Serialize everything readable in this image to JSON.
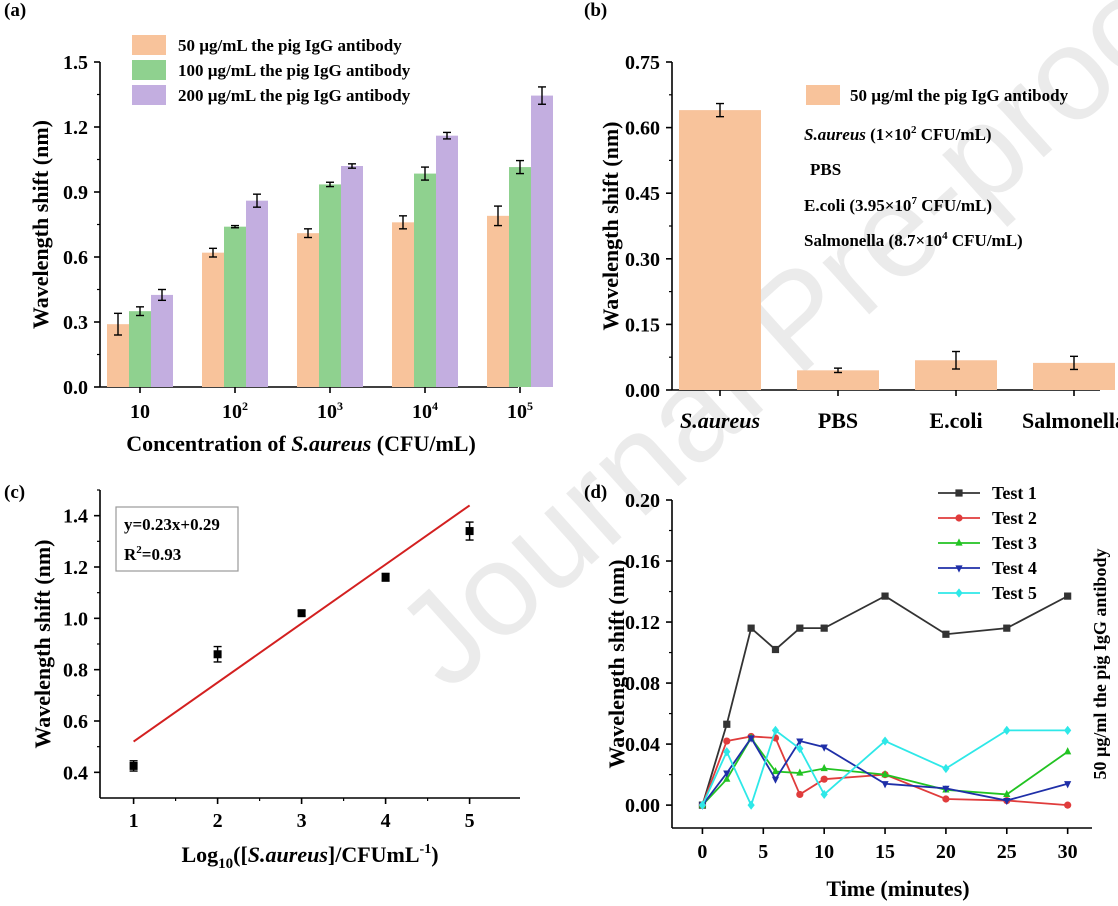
{
  "watermark": "Journal Pre-proof",
  "chart_data": [
    {
      "panel": "(a)",
      "type": "bar",
      "categories": [
        "10",
        "10^2",
        "10^3",
        "10^4",
        "10^5"
      ],
      "category_labels": [
        {
          "base": "10",
          "exp": ""
        },
        {
          "base": "10",
          "exp": "2"
        },
        {
          "base": "10",
          "exp": "3"
        },
        {
          "base": "10",
          "exp": "4"
        },
        {
          "base": "10",
          "exp": "5"
        }
      ],
      "series": [
        {
          "name": "50 µg/mL the pig IgG antibody",
          "color": "#f8c39b",
          "values": [
            0.29,
            0.62,
            0.71,
            0.76,
            0.79
          ],
          "errors": [
            0.05,
            0.02,
            0.02,
            0.03,
            0.045
          ]
        },
        {
          "name": "100 µg/mL the pig IgG antibody",
          "color": "#8fd18f",
          "values": [
            0.35,
            0.74,
            0.935,
            0.985,
            1.015
          ],
          "errors": [
            0.02,
            0.005,
            0.01,
            0.03,
            0.03
          ]
        },
        {
          "name": "200 µg/mL the pig IgG antibody",
          "color": "#c3aee0",
          "values": [
            0.425,
            0.86,
            1.02,
            1.16,
            1.345
          ],
          "errors": [
            0.025,
            0.03,
            0.01,
            0.015,
            0.04
          ]
        }
      ],
      "xlabel": "Concentration of S.aureus (CFU/mL)",
      "xlabel_parts": [
        "Concentration of ",
        "S.aureus",
        " (CFU/mL)"
      ],
      "ylabel": "Wavelength shift (nm)",
      "ylim": [
        0,
        1.5
      ],
      "yticks": [
        "0.0",
        "0.3",
        "0.6",
        "0.9",
        "1.2",
        "1.5"
      ],
      "legend": "top-left"
    },
    {
      "panel": "(b)",
      "type": "bar",
      "categories": [
        "S.aureus",
        "PBS",
        "E.coli",
        "Salmonella"
      ],
      "series": [
        {
          "name": "50 µg/ml the pig IgG antibody",
          "color": "#f8c39b",
          "values": [
            0.64,
            0.045,
            0.068,
            0.062
          ],
          "errors": [
            0.015,
            0.005,
            0.02,
            0.015
          ]
        }
      ],
      "ylabel": "Wavelength shift (nm)",
      "ylim": [
        0,
        0.75
      ],
      "yticks": [
        "0.00",
        "0.15",
        "0.30",
        "0.45",
        "0.60",
        "0.75"
      ],
      "annotations": [
        {
          "parts": [
            "S.aureus",
            " (1×10",
            "2",
            " CFU/mL)"
          ]
        },
        {
          "parts": [
            "",
            "PBS",
            "",
            ""
          ]
        },
        {
          "parts": [
            "",
            "E.coli (3.95×10",
            "7",
            " CFU/mL)"
          ]
        },
        {
          "parts": [
            "",
            "Salmonella (8.7×10",
            "4",
            " CFU/mL)"
          ]
        }
      ],
      "legend": "top-right"
    },
    {
      "panel": "(c)",
      "type": "scatter",
      "x": [
        1,
        2,
        3,
        4,
        5
      ],
      "y": [
        0.425,
        0.86,
        1.02,
        1.16,
        1.34
      ],
      "errors": [
        0.02,
        0.03,
        0.01,
        0.015,
        0.035
      ],
      "fit": {
        "slope": 0.23,
        "intercept": 0.29,
        "color": "#d32020"
      },
      "fit_label": {
        "equation": "y=0.23x+0.29",
        "r2_prefix": "R",
        "r2_exp": "2",
        "r2_value": "=0.93"
      },
      "xlabel_parts": [
        "Log",
        "10",
        "([",
        "S.aureus",
        "]/CFUmL",
        "-1",
        ")"
      ],
      "ylabel": "Wavelength shift (nm)",
      "xlim": [
        0.6,
        5.6
      ],
      "ylim": [
        0.3,
        1.5
      ],
      "xticks": [
        "1",
        "2",
        "3",
        "4",
        "5"
      ],
      "yticks": [
        "0.4",
        "0.6",
        "0.8",
        "1.0",
        "1.2",
        "1.4"
      ]
    },
    {
      "panel": "(d)",
      "type": "line",
      "x": [
        0,
        2,
        4,
        6,
        8,
        10,
        15,
        20,
        25,
        30
      ],
      "series": [
        {
          "name": "Test 1",
          "color": "#333333",
          "marker": "square",
          "values": [
            0.0,
            0.053,
            0.116,
            0.102,
            0.116,
            0.116,
            0.137,
            0.112,
            0.116,
            0.137
          ]
        },
        {
          "name": "Test 2",
          "color": "#e03c3c",
          "marker": "circle",
          "values": [
            0.0,
            0.042,
            0.045,
            0.044,
            0.007,
            0.017,
            0.02,
            0.004,
            0.003,
            0.0
          ]
        },
        {
          "name": "Test 3",
          "color": "#22c322",
          "marker": "triangle-up",
          "values": [
            0.0,
            0.017,
            0.044,
            0.022,
            0.021,
            0.024,
            0.02,
            0.01,
            0.007,
            0.035
          ]
        },
        {
          "name": "Test 4",
          "color": "#1f2fa8",
          "marker": "triangle-down",
          "values": [
            0.0,
            0.021,
            0.044,
            0.017,
            0.042,
            0.038,
            0.014,
            0.011,
            0.003,
            0.014
          ]
        },
        {
          "name": "Test 5",
          "color": "#2ee8e8",
          "marker": "diamond",
          "values": [
            0.0,
            0.035,
            0.0,
            0.049,
            0.037,
            0.007,
            0.042,
            0.024,
            0.049,
            0.049
          ]
        }
      ],
      "xlabel": "Time (minutes)",
      "ylabel": "Wavelength shift (nm)",
      "right_label": "50 µg/ml the pig IgG antibody",
      "xlim": [
        -2.5,
        32
      ],
      "ylim": [
        -0.015,
        0.2
      ],
      "xticks": [
        "0",
        "5",
        "10",
        "15",
        "20",
        "25",
        "30"
      ],
      "yticks": [
        "0.00",
        "0.04",
        "0.08",
        "0.12",
        "0.16",
        "0.20"
      ],
      "legend": "top-right"
    }
  ]
}
